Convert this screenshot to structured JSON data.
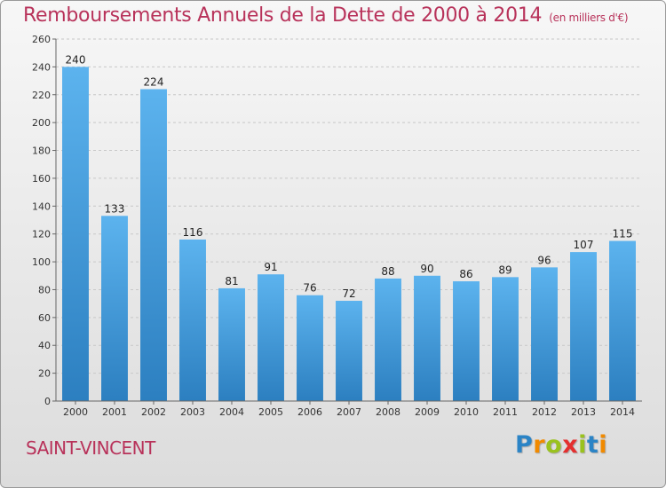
{
  "header": {
    "title": "Remboursements Annuels de la Dette de 2000 à 2014",
    "unit": "(en milliers d'€)"
  },
  "footer": {
    "town": "SAINT-VINCENT",
    "logo": [
      "P",
      "r",
      "o",
      "x",
      "i",
      "t",
      "i"
    ],
    "logo_colors": [
      "#2b84c6",
      "#f18a00",
      "#9ac21e",
      "#e42f2f",
      "#9ac21e",
      "#2b84c6",
      "#f18a00"
    ]
  },
  "colors": {
    "accent": "#b8325a",
    "bar_top": "#5cb3ee",
    "bar_bottom": "#2c7fc0"
  },
  "chart_data": {
    "type": "bar",
    "title": "Remboursements Annuels de la Dette de 2000 à 2014",
    "subtitle": "(en milliers d'€)",
    "categories": [
      "2000",
      "2001",
      "2002",
      "2003",
      "2004",
      "2005",
      "2006",
      "2007",
      "2008",
      "2009",
      "2010",
      "2011",
      "2012",
      "2013",
      "2014"
    ],
    "values": [
      240,
      133,
      224,
      116,
      81,
      91,
      76,
      72,
      88,
      90,
      86,
      89,
      96,
      107,
      115
    ],
    "ylim": [
      0,
      260
    ],
    "yticks": [
      0,
      20,
      40,
      60,
      80,
      100,
      120,
      140,
      160,
      180,
      200,
      220,
      240,
      260
    ],
    "grid": true,
    "data_labels": true
  }
}
